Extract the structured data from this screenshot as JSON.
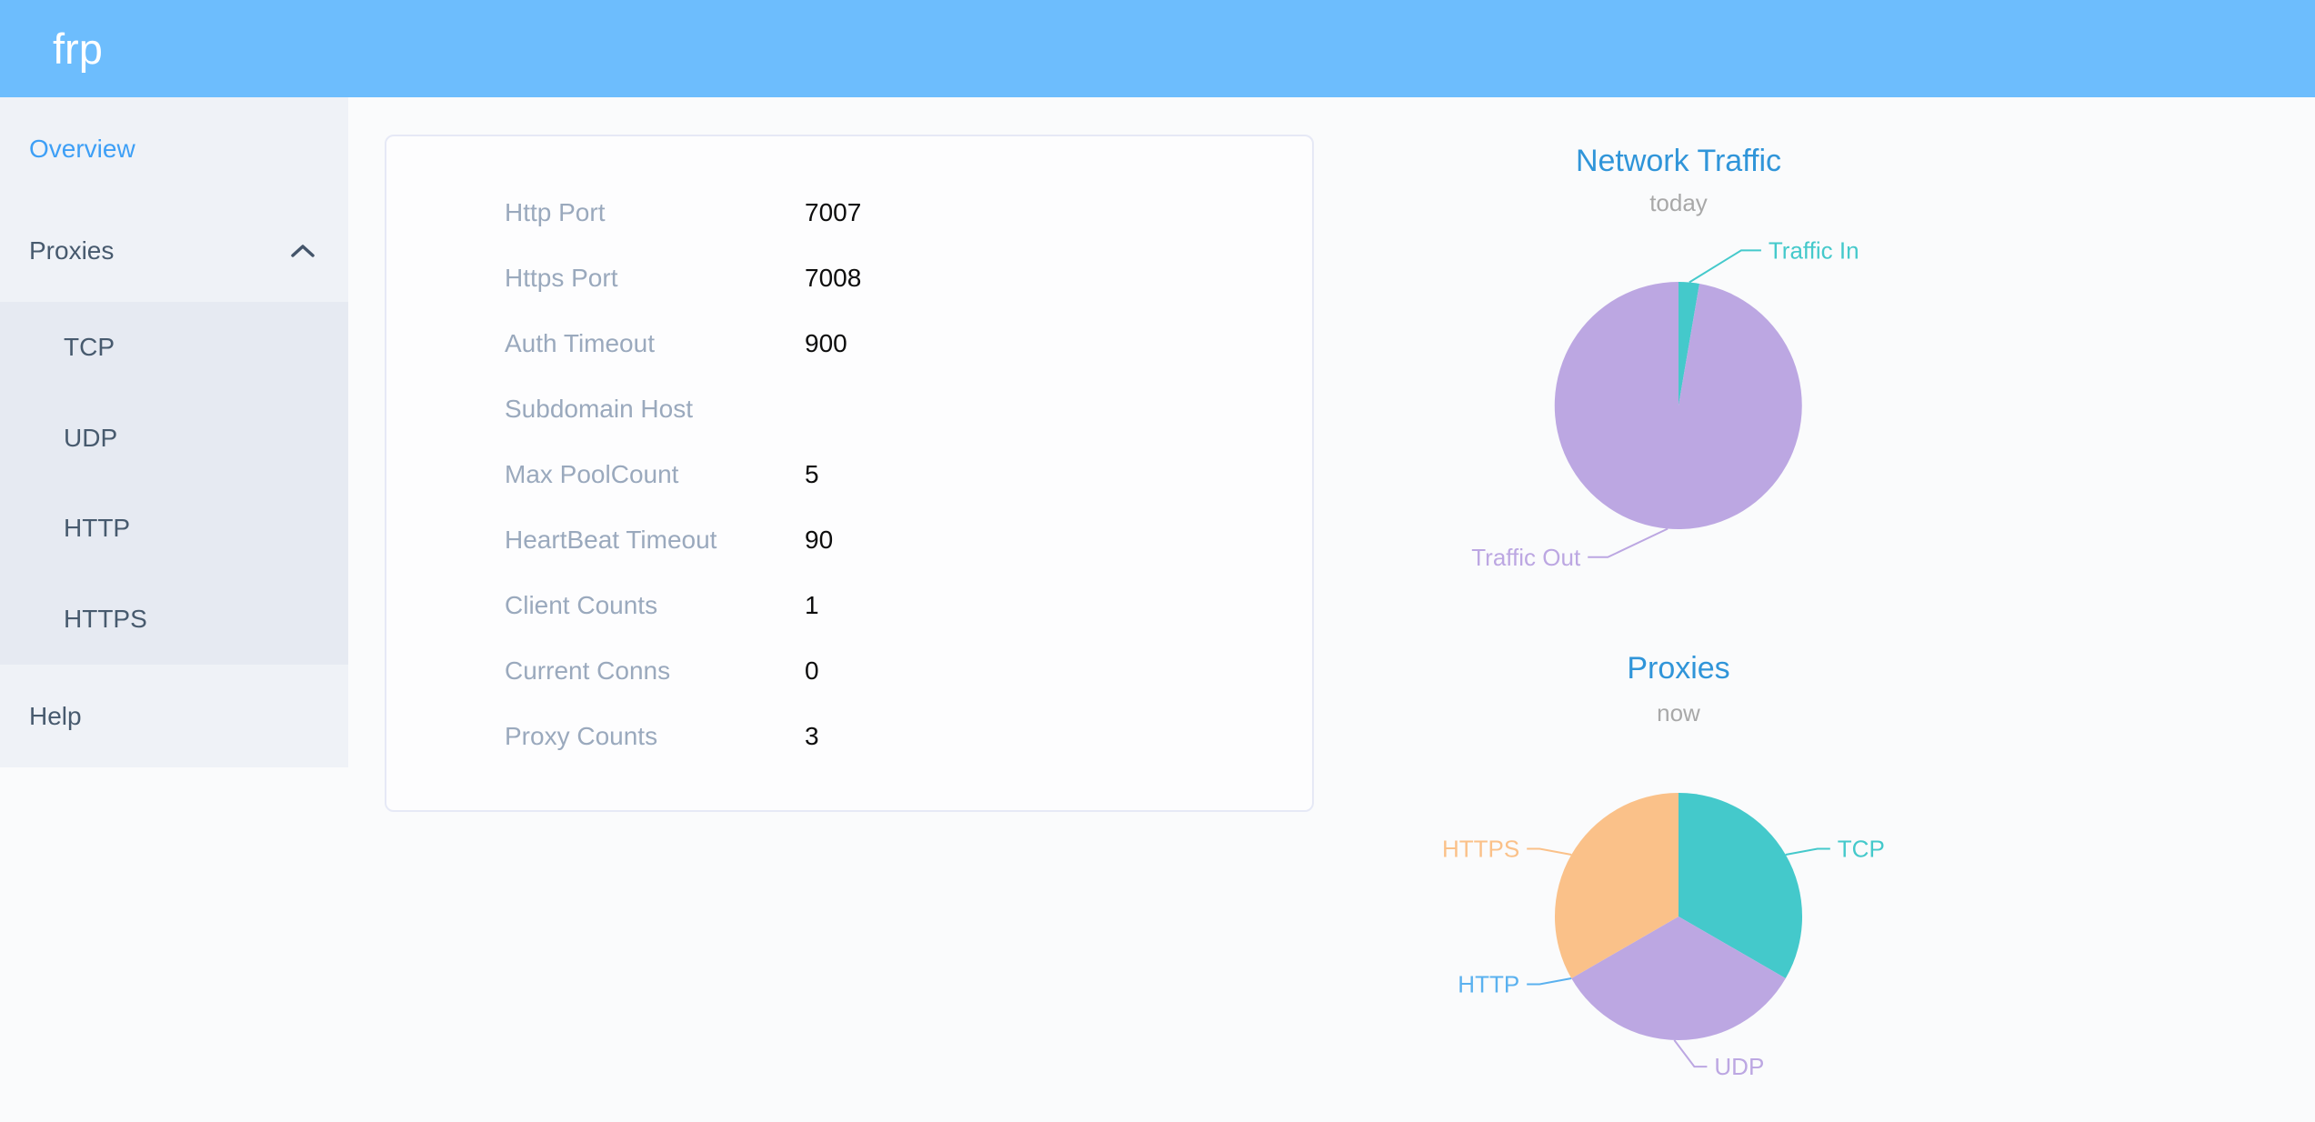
{
  "app": {
    "logo_text": "frp"
  },
  "header": {
    "background": "#6dbdfd"
  },
  "sidebar": {
    "items": [
      {
        "label": "Overview",
        "active": true
      },
      {
        "label": "Proxies",
        "expanded": true
      },
      {
        "label": "Help",
        "active": false
      }
    ],
    "submenu": [
      {
        "label": "TCP"
      },
      {
        "label": "UDP"
      },
      {
        "label": "HTTP"
      },
      {
        "label": "HTTPS"
      }
    ]
  },
  "overview_table": {
    "rows": [
      {
        "label": "Http Port",
        "value": "7007"
      },
      {
        "label": "Https Port",
        "value": "7008"
      },
      {
        "label": "Auth Timeout",
        "value": "900"
      },
      {
        "label": "Subdomain Host",
        "value": ""
      },
      {
        "label": "Max PoolCount",
        "value": "5"
      },
      {
        "label": "HeartBeat Timeout",
        "value": "90"
      },
      {
        "label": "Client Counts",
        "value": "1"
      },
      {
        "label": "Current Conns",
        "value": "0"
      },
      {
        "label": "Proxy Counts",
        "value": "3"
      }
    ]
  },
  "chart_data": [
    {
      "type": "pie",
      "title": "Network Traffic",
      "subtitle": "today",
      "legend_position": "none",
      "labels": "outside",
      "values_are_share_percent": true,
      "leader_h": 22,
      "slices": [
        {
          "label": "Traffic In",
          "value": 2.7,
          "color": "#44c9cb",
          "la": 85,
          "ea": 68,
          "er": 184,
          "dir": 1
        },
        {
          "label": "Traffic Out",
          "value": 97.3,
          "color": "#bca7e2",
          "la": 265,
          "ea": 245,
          "er": 184,
          "dir": -1
        }
      ]
    },
    {
      "type": "pie",
      "title": "Proxies",
      "subtitle": "now",
      "legend_position": "none",
      "labels": "outside",
      "values_are_counts": true,
      "leader_h": 14,
      "slices": [
        {
          "label": "TCP",
          "value": 1,
          "color": "#44c9cb",
          "la": 30,
          "ea": 26,
          "er": 170,
          "dir": 1
        },
        {
          "label": "UDP",
          "value": 1,
          "color": "#bca7e2",
          "la": 268,
          "ea": 276,
          "er": 166,
          "dir": 1
        },
        {
          "label": "HTTP",
          "value": 0,
          "color": "#5ab1ef",
          "la": 210,
          "ea": 206,
          "er": 170,
          "dir": -1
        },
        {
          "label": "HTTPS",
          "value": 1,
          "color": "#fac189",
          "la": 150,
          "ea": 154,
          "er": 170,
          "dir": -1
        }
      ]
    }
  ]
}
